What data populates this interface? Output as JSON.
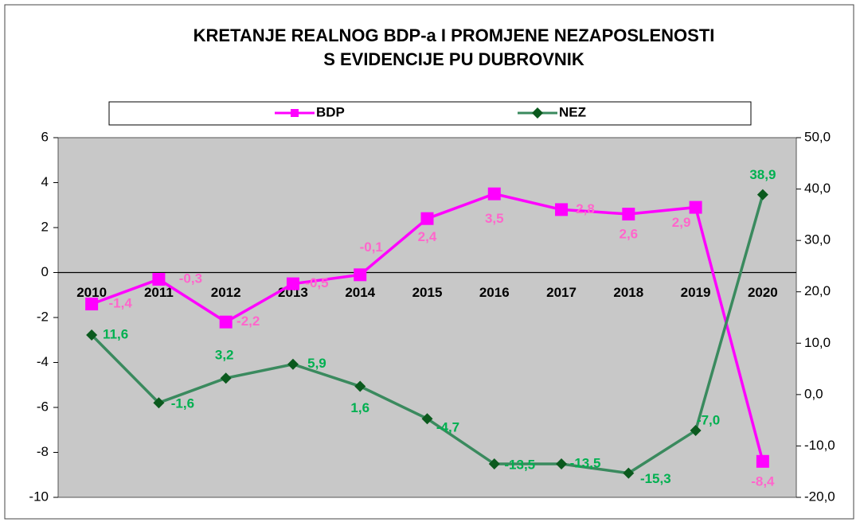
{
  "chart_data": {
    "type": "line",
    "title": [
      "KRETANJE REALNOG BDP-a I PROMJENE NEZAPOSLENOSTI",
      "S EVIDENCIJE PU DUBROVNIK"
    ],
    "categories": [
      "2010",
      "2011",
      "2012",
      "2013",
      "2014",
      "2015",
      "2016",
      "2017",
      "2018",
      "2019",
      "2020"
    ],
    "series": [
      {
        "name": "BDP",
        "color": "#ff00ff",
        "label_color": "#ff66cc",
        "marker": "square",
        "values": [
          -1.4,
          -0.3,
          -2.2,
          -0.5,
          -0.1,
          2.4,
          3.5,
          2.8,
          2.6,
          2.9,
          -8.4
        ],
        "value_labels": [
          "-1,4",
          "-0,3",
          "-2,2",
          "-0,5",
          "-0,1",
          "2,4",
          "3,5",
          "2,8",
          "2,6",
          "2,9",
          "-8,4"
        ]
      },
      {
        "name": "NEZ",
        "color": "#3a8a5e",
        "marker_color": "#0b5a1e",
        "label_color": "#00b050",
        "marker": "diamond",
        "axis": "y2",
        "values": [
          11.6,
          -1.6,
          3.2,
          5.9,
          1.6,
          -4.7,
          -13.5,
          -13.5,
          -15.3,
          -7.0,
          38.9
        ],
        "value_labels": [
          "11,6",
          "-1,6",
          "3,2",
          "5,9",
          "1,6",
          "-4,7",
          "-13,5",
          "-13,5",
          "-15,3",
          "-7,0",
          "38,9"
        ]
      }
    ],
    "ylim": [
      -10,
      6
    ],
    "yticks": [
      -10,
      -8,
      -6,
      -4,
      -2,
      0,
      2,
      4,
      6
    ],
    "y2lim": [
      -20,
      50
    ],
    "y2ticks": [
      {
        "value": -20,
        "label": "-20,0"
      },
      {
        "value": -10,
        "label": "-10,0"
      },
      {
        "value": 0,
        "label": "0,0"
      },
      {
        "value": 10,
        "label": "10,0"
      },
      {
        "value": 20,
        "label": "20,0"
      },
      {
        "value": 30,
        "label": "30,0"
      },
      {
        "value": 40,
        "label": "40,0"
      },
      {
        "value": 50,
        "label": "50,0"
      }
    ],
    "legend": "top",
    "grid": false
  }
}
